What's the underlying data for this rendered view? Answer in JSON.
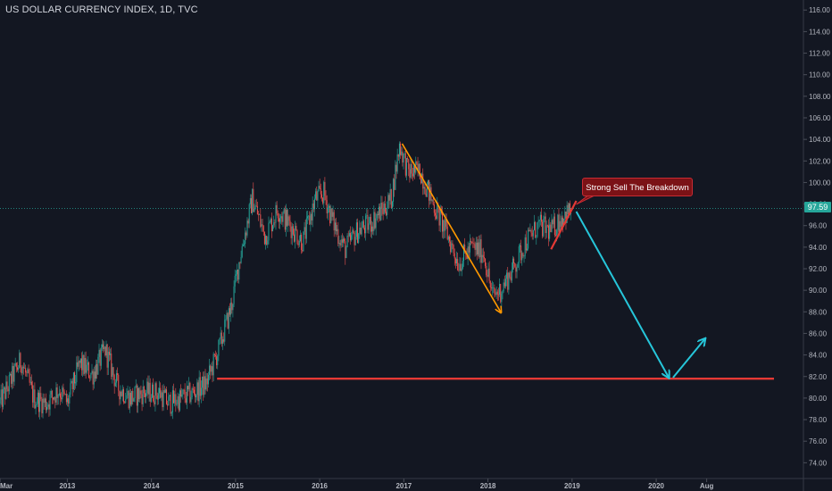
{
  "header": {
    "title": "US DOLLAR CURRENCY INDEX, 1D, TVC"
  },
  "chart_data": {
    "type": "candlestick",
    "symbol": "US DOLLAR CURRENCY INDEX",
    "interval": "1D",
    "source": "TVC",
    "y_axis": {
      "ticks": [
        74,
        76,
        78,
        80,
        82,
        84,
        86,
        88,
        90,
        92,
        94,
        96,
        98,
        100,
        102,
        104,
        106,
        108,
        110,
        112,
        114,
        116
      ],
      "tick_labels": [
        "74.00",
        "76.00",
        "78.00",
        "80.00",
        "82.00",
        "84.00",
        "86.00",
        "88.00",
        "90.00",
        "92.00",
        "94.00",
        "96.00",
        "98.00",
        "100.00",
        "102.00",
        "104.00",
        "106.00",
        "108.00",
        "110.00",
        "112.00",
        "114.00",
        "116.00"
      ],
      "range": [
        73.2,
        116.6
      ]
    },
    "x_axis": {
      "ticks": [
        2012.2,
        2013,
        2014,
        2015,
        2016,
        2017,
        2018,
        2019,
        2020,
        2020.6
      ],
      "tick_labels": [
        "Mar",
        "2013",
        "2014",
        "2015",
        "2016",
        "2017",
        "2018",
        "2019",
        "2020",
        "Aug"
      ],
      "range": [
        2012.2,
        2021.75
      ]
    },
    "last_price": 97.59,
    "last_price_label": "97.59",
    "price_path": [
      [
        2012.2,
        79.5
      ],
      [
        2012.35,
        82.0
      ],
      [
        2012.45,
        83.5
      ],
      [
        2012.6,
        80.0
      ],
      [
        2012.75,
        79.5
      ],
      [
        2012.9,
        80.8
      ],
      [
        2013.0,
        79.5
      ],
      [
        2013.15,
        83.2
      ],
      [
        2013.3,
        82.2
      ],
      [
        2013.45,
        84.5
      ],
      [
        2013.6,
        81.0
      ],
      [
        2013.75,
        80.0
      ],
      [
        2013.9,
        80.5
      ],
      [
        2014.1,
        80.5
      ],
      [
        2014.2,
        79.5
      ],
      [
        2014.35,
        80.0
      ],
      [
        2014.5,
        80.5
      ],
      [
        2014.65,
        81.3
      ],
      [
        2014.8,
        84.5
      ],
      [
        2014.95,
        88.5
      ],
      [
        2015.05,
        93.0
      ],
      [
        2015.2,
        98.5
      ],
      [
        2015.35,
        95.0
      ],
      [
        2015.5,
        97.5
      ],
      [
        2015.65,
        96.0
      ],
      [
        2015.8,
        94.5
      ],
      [
        2015.95,
        98.5
      ],
      [
        2016.05,
        99.0
      ],
      [
        2016.15,
        96.5
      ],
      [
        2016.3,
        93.8
      ],
      [
        2016.45,
        95.5
      ],
      [
        2016.6,
        96.2
      ],
      [
        2016.75,
        97.5
      ],
      [
        2016.85,
        98.5
      ],
      [
        2016.95,
        103.5
      ],
      [
        2017.05,
        101.0
      ],
      [
        2017.2,
        101.0
      ],
      [
        2017.35,
        98.0
      ],
      [
        2017.5,
        95.5
      ],
      [
        2017.65,
        92.5
      ],
      [
        2017.8,
        94.0
      ],
      [
        2017.95,
        93.5
      ],
      [
        2018.05,
        89.5
      ],
      [
        2018.15,
        90.0
      ],
      [
        2018.3,
        92.0
      ],
      [
        2018.45,
        94.5
      ],
      [
        2018.6,
        96.0
      ],
      [
        2018.75,
        95.5
      ],
      [
        2018.9,
        97.0
      ],
      [
        2019.0,
        97.4
      ]
    ],
    "annotations": {
      "callout_text": "Strong Sell The Breakdown",
      "support_level": 81.8,
      "support_line_x": [
        2014.78,
        2021.4
      ],
      "orange_arrow": {
        "from": [
          2016.98,
          103.6
        ],
        "to": [
          2018.15,
          88.0
        ]
      },
      "red_breakdown_line": {
        "from": [
          2018.75,
          93.8
        ],
        "to": [
          2019.05,
          98.3
        ]
      },
      "cyan_arrow_down": {
        "from": [
          2019.05,
          97.3
        ],
        "to": [
          2020.15,
          81.9
        ]
      },
      "cyan_arrow_up": {
        "from": [
          2020.2,
          81.9
        ],
        "to": [
          2020.58,
          85.5
        ]
      }
    },
    "colors": {
      "background": "#131722",
      "up_candle": "#26a69a",
      "down_candle": "#ef5350",
      "support_line": "#e53935",
      "orange_arrow": "#ff9800",
      "cyan_arrow": "#26c6da",
      "price_line": "#26a69a",
      "axis_text": "#b2b5be"
    }
  }
}
